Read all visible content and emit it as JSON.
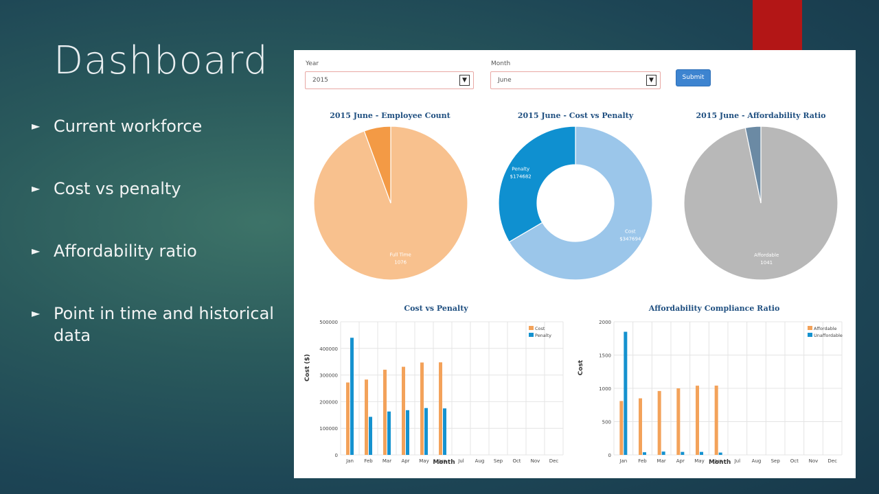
{
  "slide": {
    "title": "Dashboard",
    "bullets": [
      {
        "text": "Current workforce"
      },
      {
        "text": "Cost vs penalty"
      },
      {
        "text": "Affordability ratio"
      },
      {
        "text": "Point in time and historical data"
      }
    ],
    "accent_color": "#b31616"
  },
  "dashboard": {
    "year_label": "Year",
    "year_value": "2015",
    "month_label": "Month",
    "month_value": "June",
    "submit_label": "Submit",
    "dropdown_icon": "chevron-down-icon"
  },
  "chart_data": [
    {
      "type": "pie",
      "title": "2015 June - Employee Count",
      "slices": [
        {
          "label": "Full Time",
          "value": 1076,
          "color": "#f8c18e",
          "shown": true
        },
        {
          "label": "",
          "value": 64,
          "color": "#f39a45",
          "shown": false
        }
      ]
    },
    {
      "type": "pie",
      "donut": true,
      "title": "2015 June - Cost vs Penalty",
      "slices": [
        {
          "label": "Cost",
          "display": "$347694",
          "value": 347694,
          "color": "#9bc6ea",
          "shown": true
        },
        {
          "label": "Penalty",
          "display": "$174682",
          "value": 174682,
          "color": "#0f90d0",
          "shown": true
        }
      ]
    },
    {
      "type": "pie",
      "title": "2015 June - Affordability Ratio",
      "slices": [
        {
          "label": "Affordable",
          "value": 1041,
          "color": "#b8b8b8",
          "shown": true
        },
        {
          "label": "",
          "value": 35,
          "color": "#6b8aa4",
          "shown": false
        }
      ]
    },
    {
      "type": "bar",
      "title": "Cost vs Penalty",
      "xlabel": "Month",
      "ylabel": "Cost ($)",
      "ylim": [
        0,
        500000
      ],
      "yticks": [
        "0",
        "100000",
        "200000",
        "300000",
        "400000",
        "500000"
      ],
      "categories": [
        "Jan",
        "Feb",
        "Mar",
        "Apr",
        "May",
        "Jun",
        "Jul",
        "Aug",
        "Sep",
        "Oct",
        "Nov",
        "Dec"
      ],
      "legend_position": "top-right",
      "series": [
        {
          "name": "Cost",
          "color": "#f3a25a",
          "values": [
            272000,
            283000,
            320000,
            331000,
            347000,
            347694,
            null,
            null,
            null,
            null,
            null,
            null
          ]
        },
        {
          "name": "Penalty",
          "color": "#1592cf",
          "values": [
            440000,
            143000,
            163000,
            168000,
            176000,
            174682,
            null,
            null,
            null,
            null,
            null,
            null
          ]
        }
      ]
    },
    {
      "type": "bar",
      "title": "Affordability Compliance Ratio",
      "xlabel": "Month",
      "ylabel": "Cost",
      "ylim": [
        0,
        2000
      ],
      "yticks": [
        "0",
        "500",
        "1000",
        "1500",
        "2000"
      ],
      "categories": [
        "Jan",
        "Feb",
        "Mar",
        "Apr",
        "May",
        "Jun",
        "Jul",
        "Aug",
        "Sep",
        "Oct",
        "Nov",
        "Dec"
      ],
      "legend_position": "top-right",
      "series": [
        {
          "name": "Affordable",
          "color": "#f3a25a",
          "values": [
            810,
            850,
            960,
            1000,
            1040,
            1041,
            null,
            null,
            null,
            null,
            null,
            null
          ]
        },
        {
          "name": "Unaffordable",
          "color": "#1592cf",
          "values": [
            1850,
            40,
            50,
            45,
            45,
            35,
            null,
            null,
            null,
            null,
            null,
            null
          ]
        }
      ]
    }
  ]
}
